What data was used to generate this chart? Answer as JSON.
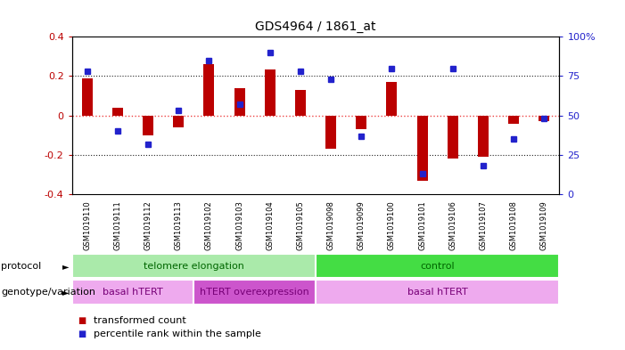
{
  "title": "GDS4964 / 1861_at",
  "samples": [
    "GSM1019110",
    "GSM1019111",
    "GSM1019112",
    "GSM1019113",
    "GSM1019102",
    "GSM1019103",
    "GSM1019104",
    "GSM1019105",
    "GSM1019098",
    "GSM1019099",
    "GSM1019100",
    "GSM1019101",
    "GSM1019106",
    "GSM1019107",
    "GSM1019108",
    "GSM1019109"
  ],
  "bar_values": [
    0.19,
    0.04,
    -0.1,
    -0.06,
    0.26,
    0.14,
    0.235,
    0.13,
    -0.17,
    -0.07,
    0.17,
    -0.33,
    -0.22,
    -0.21,
    -0.04,
    -0.03
  ],
  "dot_values": [
    78,
    40,
    32,
    53,
    85,
    57,
    90,
    78,
    73,
    37,
    80,
    13,
    80,
    18,
    35,
    48
  ],
  "ylim": [
    -0.4,
    0.4
  ],
  "yticks": [
    -0.4,
    -0.2,
    0.0,
    0.2,
    0.4
  ],
  "ytick_labels": [
    "-0.4",
    "-0.2",
    "0",
    "0.2",
    "0.4"
  ],
  "y2lim": [
    0,
    100
  ],
  "y2ticks": [
    0,
    25,
    50,
    75,
    100
  ],
  "y2ticklabels": [
    "0",
    "25",
    "50",
    "75",
    "100%"
  ],
  "bar_color": "#bb0000",
  "dot_color": "#2222cc",
  "zero_line_color": "#ee4444",
  "dotted_line_color": "#222222",
  "background_color": "#ffffff",
  "plot_bg_color": "#ffffff",
  "sample_label_bg": "#c8c8c8",
  "protocol_groups": [
    {
      "label": "telomere elongation",
      "start": 0,
      "end": 7,
      "color": "#aaeaaa"
    },
    {
      "label": "control",
      "start": 8,
      "end": 15,
      "color": "#44dd44"
    }
  ],
  "genotype_groups": [
    {
      "label": "basal hTERT",
      "start": 0,
      "end": 3,
      "color": "#eeaaee"
    },
    {
      "label": "hTERT overexpression",
      "start": 4,
      "end": 7,
      "color": "#cc55cc"
    },
    {
      "label": "basal hTERT",
      "start": 8,
      "end": 15,
      "color": "#eeaaee"
    }
  ],
  "legend_items": [
    {
      "label": "transformed count",
      "color": "#bb0000"
    },
    {
      "label": "percentile rank within the sample",
      "color": "#2222cc"
    }
  ],
  "protocol_label": "protocol",
  "genotype_label": "genotype/variation",
  "bar_width": 0.35
}
